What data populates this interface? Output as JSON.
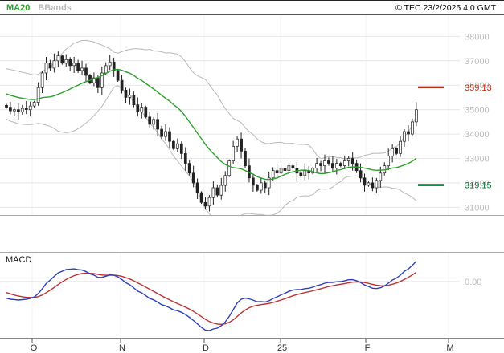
{
  "header": {
    "legend": [
      {
        "label": "MA20",
        "color": "#2ca02c"
      },
      {
        "label": "BBands",
        "color": "#b9b9b9"
      }
    ],
    "copyright": "© TEC 23/2/2025 4:0 GMT"
  },
  "chart_data": {
    "type": "candlestick",
    "title": "",
    "price_panel": {
      "yticks": [
        38000,
        37000,
        36000,
        35000,
        34000,
        33000,
        32000,
        31000
      ],
      "ylim": [
        30650,
        38900
      ],
      "grid": true,
      "warmup_closes": [
        36600,
        36400,
        36100,
        35900,
        35700,
        35500,
        35350,
        35250,
        35150,
        35050
      ],
      "closes": [
        35100,
        34950,
        35000,
        34900,
        35050,
        35000,
        35150,
        35300,
        35900,
        36500,
        36900,
        36700,
        37000,
        37200,
        36900,
        37050,
        36800,
        36900,
        36600,
        36700,
        36400,
        36100,
        36300,
        35900,
        36500,
        36800,
        36950,
        36600,
        36200,
        35800,
        35500,
        35600,
        35200,
        34900,
        35100,
        34700,
        34400,
        34600,
        34200,
        33900,
        34100,
        33700,
        33400,
        33600,
        33200,
        32800,
        32400,
        32000,
        31600,
        31200,
        31050,
        31400,
        31800,
        31500,
        31900,
        32300,
        32900,
        33500,
        33800,
        33300,
        32700,
        32200,
        31900,
        31700,
        32000,
        31800,
        32200,
        32500,
        32400,
        32600,
        32500,
        32700,
        32600,
        32400,
        32300,
        32500,
        32400,
        32600,
        32800,
        32700,
        32900,
        32800,
        32600,
        32800,
        32700,
        32900,
        33000,
        32800,
        32500,
        32200,
        31900,
        32000,
        31800,
        32100,
        32400,
        32700,
        33100,
        33400,
        33200,
        33700,
        34100,
        34000,
        34500,
        35000
      ],
      "indicators": [
        {
          "name": "MA20",
          "type": "sma",
          "period": 20,
          "color": "#2ca02c"
        },
        {
          "name": "BBands",
          "type": "bollinger",
          "period": 20,
          "stddev": 2,
          "color": "#b9b9b9"
        }
      ],
      "levels": [
        {
          "label": "359.13",
          "value": 35913,
          "color": "#c03010"
        },
        {
          "label": "319.15",
          "value": 31915,
          "color": "#007733"
        }
      ],
      "candle_color": "#222222"
    },
    "macd_panel": {
      "label": "MACD",
      "zero_label": "0.00",
      "macd_color": "#2e3fbb",
      "signal_color": "#bb3333",
      "params": {
        "fast": 12,
        "slow": 26,
        "signal": 9
      }
    },
    "xaxis": {
      "labels": [
        "O",
        "N",
        "D",
        "25",
        "F",
        "M"
      ],
      "positions": [
        40,
        150,
        254,
        349,
        455,
        558
      ]
    }
  }
}
